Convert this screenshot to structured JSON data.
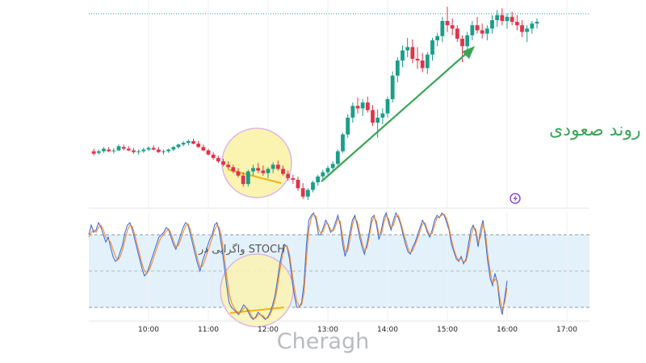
{
  "chart_data": [
    {
      "type": "candlestick",
      "panel": "price",
      "annotation_trend": "روند صعودی",
      "up_color": "#1a9e8a",
      "down_color": "#e0344a",
      "x": [
        "09:05",
        "09:10",
        "09:15",
        "09:20",
        "09:25",
        "09:30",
        "09:35",
        "09:40",
        "09:45",
        "09:50",
        "09:55",
        "10:00",
        "10:05",
        "10:10",
        "10:15",
        "10:20",
        "10:25",
        "10:30",
        "10:35",
        "10:40",
        "10:45",
        "10:50",
        "10:55",
        "11:00",
        "11:05",
        "11:10",
        "11:15",
        "11:20",
        "11:25",
        "11:30",
        "11:35",
        "11:40",
        "11:45",
        "11:50",
        "11:55",
        "12:00",
        "12:05",
        "12:10",
        "12:15",
        "12:20",
        "12:25",
        "12:30",
        "12:35",
        "12:40",
        "12:45",
        "12:50",
        "12:55",
        "13:00",
        "13:05",
        "13:10",
        "13:15",
        "13:20",
        "13:25",
        "13:30",
        "13:35",
        "13:40",
        "13:45",
        "13:50",
        "13:55",
        "14:00",
        "14:05",
        "14:10",
        "14:15",
        "14:20",
        "14:25",
        "14:30",
        "14:35",
        "14:40",
        "14:45",
        "14:50",
        "14:55",
        "15:00",
        "15:05",
        "15:10",
        "15:15",
        "15:20",
        "15:25",
        "15:30",
        "15:35",
        "15:40",
        "15:45",
        "15:50",
        "15:55",
        "16:00",
        "16:05",
        "16:10",
        "16:15",
        "16:20",
        "16:25",
        "16:30"
      ],
      "candles": [
        [
          150,
          153,
          145,
          147
        ],
        [
          148,
          152,
          146,
          150
        ],
        [
          150,
          155,
          148,
          153
        ],
        [
          152,
          155,
          149,
          150
        ],
        [
          150,
          154,
          147,
          151
        ],
        [
          151,
          158,
          150,
          156
        ],
        [
          155,
          158,
          151,
          153
        ],
        [
          153,
          156,
          150,
          151
        ],
        [
          151,
          154,
          147,
          149
        ],
        [
          149,
          152,
          146,
          150
        ],
        [
          150,
          154,
          148,
          152
        ],
        [
          152,
          156,
          150,
          154
        ],
        [
          154,
          157,
          151,
          152
        ],
        [
          152,
          155,
          148,
          149
        ],
        [
          149,
          152,
          146,
          150
        ],
        [
          150,
          153,
          148,
          152
        ],
        [
          152,
          156,
          150,
          155
        ],
        [
          155,
          159,
          153,
          158
        ],
        [
          158,
          162,
          156,
          160
        ],
        [
          160,
          164,
          157,
          162
        ],
        [
          162,
          165,
          158,
          159
        ],
        [
          159,
          162,
          154,
          155
        ],
        [
          155,
          158,
          150,
          151
        ],
        [
          151,
          153,
          145,
          146
        ],
        [
          146,
          149,
          140,
          142
        ],
        [
          142,
          145,
          136,
          138
        ],
        [
          138,
          141,
          132,
          134
        ],
        [
          134,
          138,
          129,
          131
        ],
        [
          131,
          134,
          124,
          126
        ],
        [
          126,
          130,
          119,
          121
        ],
        [
          121,
          125,
          108,
          111
        ],
        [
          111,
          128,
          108,
          126
        ],
        [
          126,
          134,
          121,
          130
        ],
        [
          130,
          136,
          124,
          127
        ],
        [
          127,
          133,
          121,
          124
        ],
        [
          124,
          131,
          118,
          129
        ],
        [
          129,
          137,
          124,
          134
        ],
        [
          134,
          139,
          127,
          129
        ],
        [
          129,
          133,
          121,
          123
        ],
        [
          123,
          127,
          115,
          118
        ],
        [
          118,
          122,
          111,
          116
        ],
        [
          116,
          120,
          103,
          106
        ],
        [
          106,
          112,
          93,
          96
        ],
        [
          96,
          106,
          92,
          104
        ],
        [
          104,
          115,
          101,
          113
        ],
        [
          113,
          122,
          109,
          120
        ],
        [
          120,
          128,
          116,
          125
        ],
        [
          125,
          133,
          120,
          130
        ],
        [
          130,
          138,
          126,
          135
        ],
        [
          135,
          152,
          133,
          150
        ],
        [
          150,
          172,
          148,
          170
        ],
        [
          170,
          194,
          166,
          190
        ],
        [
          190,
          208,
          184,
          204
        ],
        [
          204,
          214,
          195,
          201
        ],
        [
          201,
          212,
          192,
          208
        ],
        [
          208,
          215,
          196,
          199
        ],
        [
          199,
          205,
          180,
          184
        ],
        [
          184,
          200,
          166,
          190
        ],
        [
          190,
          201,
          182,
          195
        ],
        [
          195,
          215,
          190,
          212
        ],
        [
          212,
          245,
          208,
          240
        ],
        [
          240,
          262,
          232,
          258
        ],
        [
          258,
          276,
          250,
          270
        ],
        [
          270,
          285,
          262,
          274
        ],
        [
          274,
          283,
          255,
          260
        ],
        [
          260,
          274,
          248,
          258
        ],
        [
          258,
          267,
          244,
          249
        ],
        [
          249,
          268,
          242,
          265
        ],
        [
          265,
          285,
          258,
          282
        ],
        [
          282,
          291,
          275,
          287
        ],
        [
          287,
          310,
          280,
          305
        ],
        [
          305,
          322,
          292,
          300
        ],
        [
          300,
          308,
          288,
          296
        ],
        [
          296,
          300,
          280,
          284
        ],
        [
          284,
          288,
          256,
          275
        ],
        [
          275,
          292,
          270,
          288
        ],
        [
          288,
          305,
          282,
          300
        ],
        [
          300,
          310,
          290,
          294
        ],
        [
          294,
          302,
          284,
          290
        ],
        [
          290,
          300,
          282,
          296
        ],
        [
          296,
          312,
          290,
          306
        ],
        [
          306,
          318,
          298,
          312
        ],
        [
          312,
          320,
          300,
          305
        ],
        [
          305,
          314,
          296,
          310
        ],
        [
          310,
          316,
          300,
          304
        ],
        [
          304,
          312,
          294,
          300
        ],
        [
          300,
          306,
          286,
          292
        ],
        [
          292,
          300,
          280,
          296
        ],
        [
          296,
          305,
          290,
          302
        ],
        [
          302,
          308,
          296,
          304
        ]
      ],
      "price_range": [
        90,
        330
      ]
    },
    {
      "type": "line",
      "panel": "indicator",
      "annotation_divergence": "واگرایی در STOCH",
      "x_ticks": [
        "10:00",
        "11:00",
        "12:00",
        "13:00",
        "14:00",
        "15:00",
        "16:00",
        "17:00"
      ],
      "ylim": [
        0,
        100
      ],
      "band": [
        20,
        80
      ],
      "series": [
        {
          "color": "#3f6fd8",
          "values": [
            80,
            88,
            82,
            84,
            90,
            86,
            80,
            74,
            78,
            70,
            62,
            58,
            60,
            66,
            72,
            82,
            88,
            90,
            84,
            76,
            68,
            60,
            52,
            46,
            48,
            54,
            60,
            66,
            72,
            78,
            80,
            82,
            86,
            84,
            78,
            72,
            68,
            74,
            80,
            86,
            90,
            88,
            80,
            72,
            64,
            56,
            50,
            58,
            64,
            70,
            76,
            80,
            88,
            90,
            82,
            70,
            54,
            38,
            24,
            20,
            18,
            16,
            14,
            18,
            22,
            20,
            16,
            12,
            10,
            12,
            16,
            14,
            12,
            10,
            12,
            16,
            22,
            30,
            42,
            56,
            66,
            72,
            70,
            60,
            44,
            30,
            20,
            20,
            24,
            40,
            72,
            92,
            96,
            98,
            92,
            80,
            80,
            86,
            92,
            88,
            82,
            84,
            90,
            96,
            88,
            72,
            62,
            70,
            82,
            92,
            96,
            88,
            78,
            70,
            64,
            72,
            82,
            94,
            96,
            88,
            76,
            84,
            94,
            98,
            90,
            84,
            92,
            98,
            94,
            88,
            80,
            72,
            66,
            64,
            70,
            74,
            80,
            86,
            92,
            88,
            82,
            78,
            84,
            92,
            96,
            94,
            98,
            96,
            90,
            84,
            72,
            66,
            60,
            58,
            62,
            56,
            60,
            72,
            84,
            88,
            82,
            70,
            84,
            92,
            76,
            58,
            44,
            38,
            48,
            40,
            22,
            14,
            28,
            42
          ]
        },
        {
          "color": "#f08a2c",
          "values": [
            78,
            82,
            84,
            82,
            86,
            88,
            84,
            78,
            76,
            74,
            68,
            62,
            59,
            62,
            68,
            76,
            84,
            88,
            87,
            80,
            72,
            64,
            56,
            50,
            48,
            51,
            56,
            62,
            68,
            74,
            78,
            80,
            83,
            85,
            81,
            75,
            70,
            71,
            76,
            82,
            87,
            89,
            84,
            76,
            68,
            60,
            53,
            54,
            59,
            65,
            71,
            77,
            84,
            88,
            86,
            76,
            62,
            46,
            32,
            24,
            20,
            17,
            15,
            16,
            19,
            20,
            18,
            14,
            11,
            11,
            14,
            14,
            13,
            11,
            11,
            14,
            19,
            26,
            36,
            50,
            62,
            70,
            71,
            64,
            50,
            36,
            25,
            21,
            22,
            32,
            60,
            84,
            94,
            97,
            95,
            85,
            81,
            83,
            89,
            89,
            84,
            83,
            87,
            93,
            91,
            78,
            66,
            66,
            76,
            88,
            94,
            91,
            82,
            74,
            67,
            69,
            78,
            90,
            95,
            91,
            80,
            80,
            90,
            96,
            93,
            86,
            88,
            95,
            96,
            90,
            83,
            76,
            69,
            65,
            67,
            72,
            77,
            83,
            89,
            90,
            84,
            80,
            81,
            88,
            94,
            95,
            96,
            97,
            93,
            86,
            76,
            68,
            62,
            59,
            60,
            58,
            58,
            66,
            78,
            86,
            85,
            74,
            78,
            88,
            82,
            64,
            50,
            40,
            43,
            42,
            28,
            18,
            24,
            36
          ]
        }
      ]
    }
  ],
  "brand": "Cheragh",
  "colors": {
    "trend_arrow": "#3aa655",
    "divergence_line": "#f0b41c",
    "highlight_fill": "#fbf3b0",
    "highlight_stroke": "#d9b7e8",
    "band_fill": "#e3f1fb",
    "band_dash": "#8a9aa6",
    "flash_icon": "#8d3fd0"
  }
}
